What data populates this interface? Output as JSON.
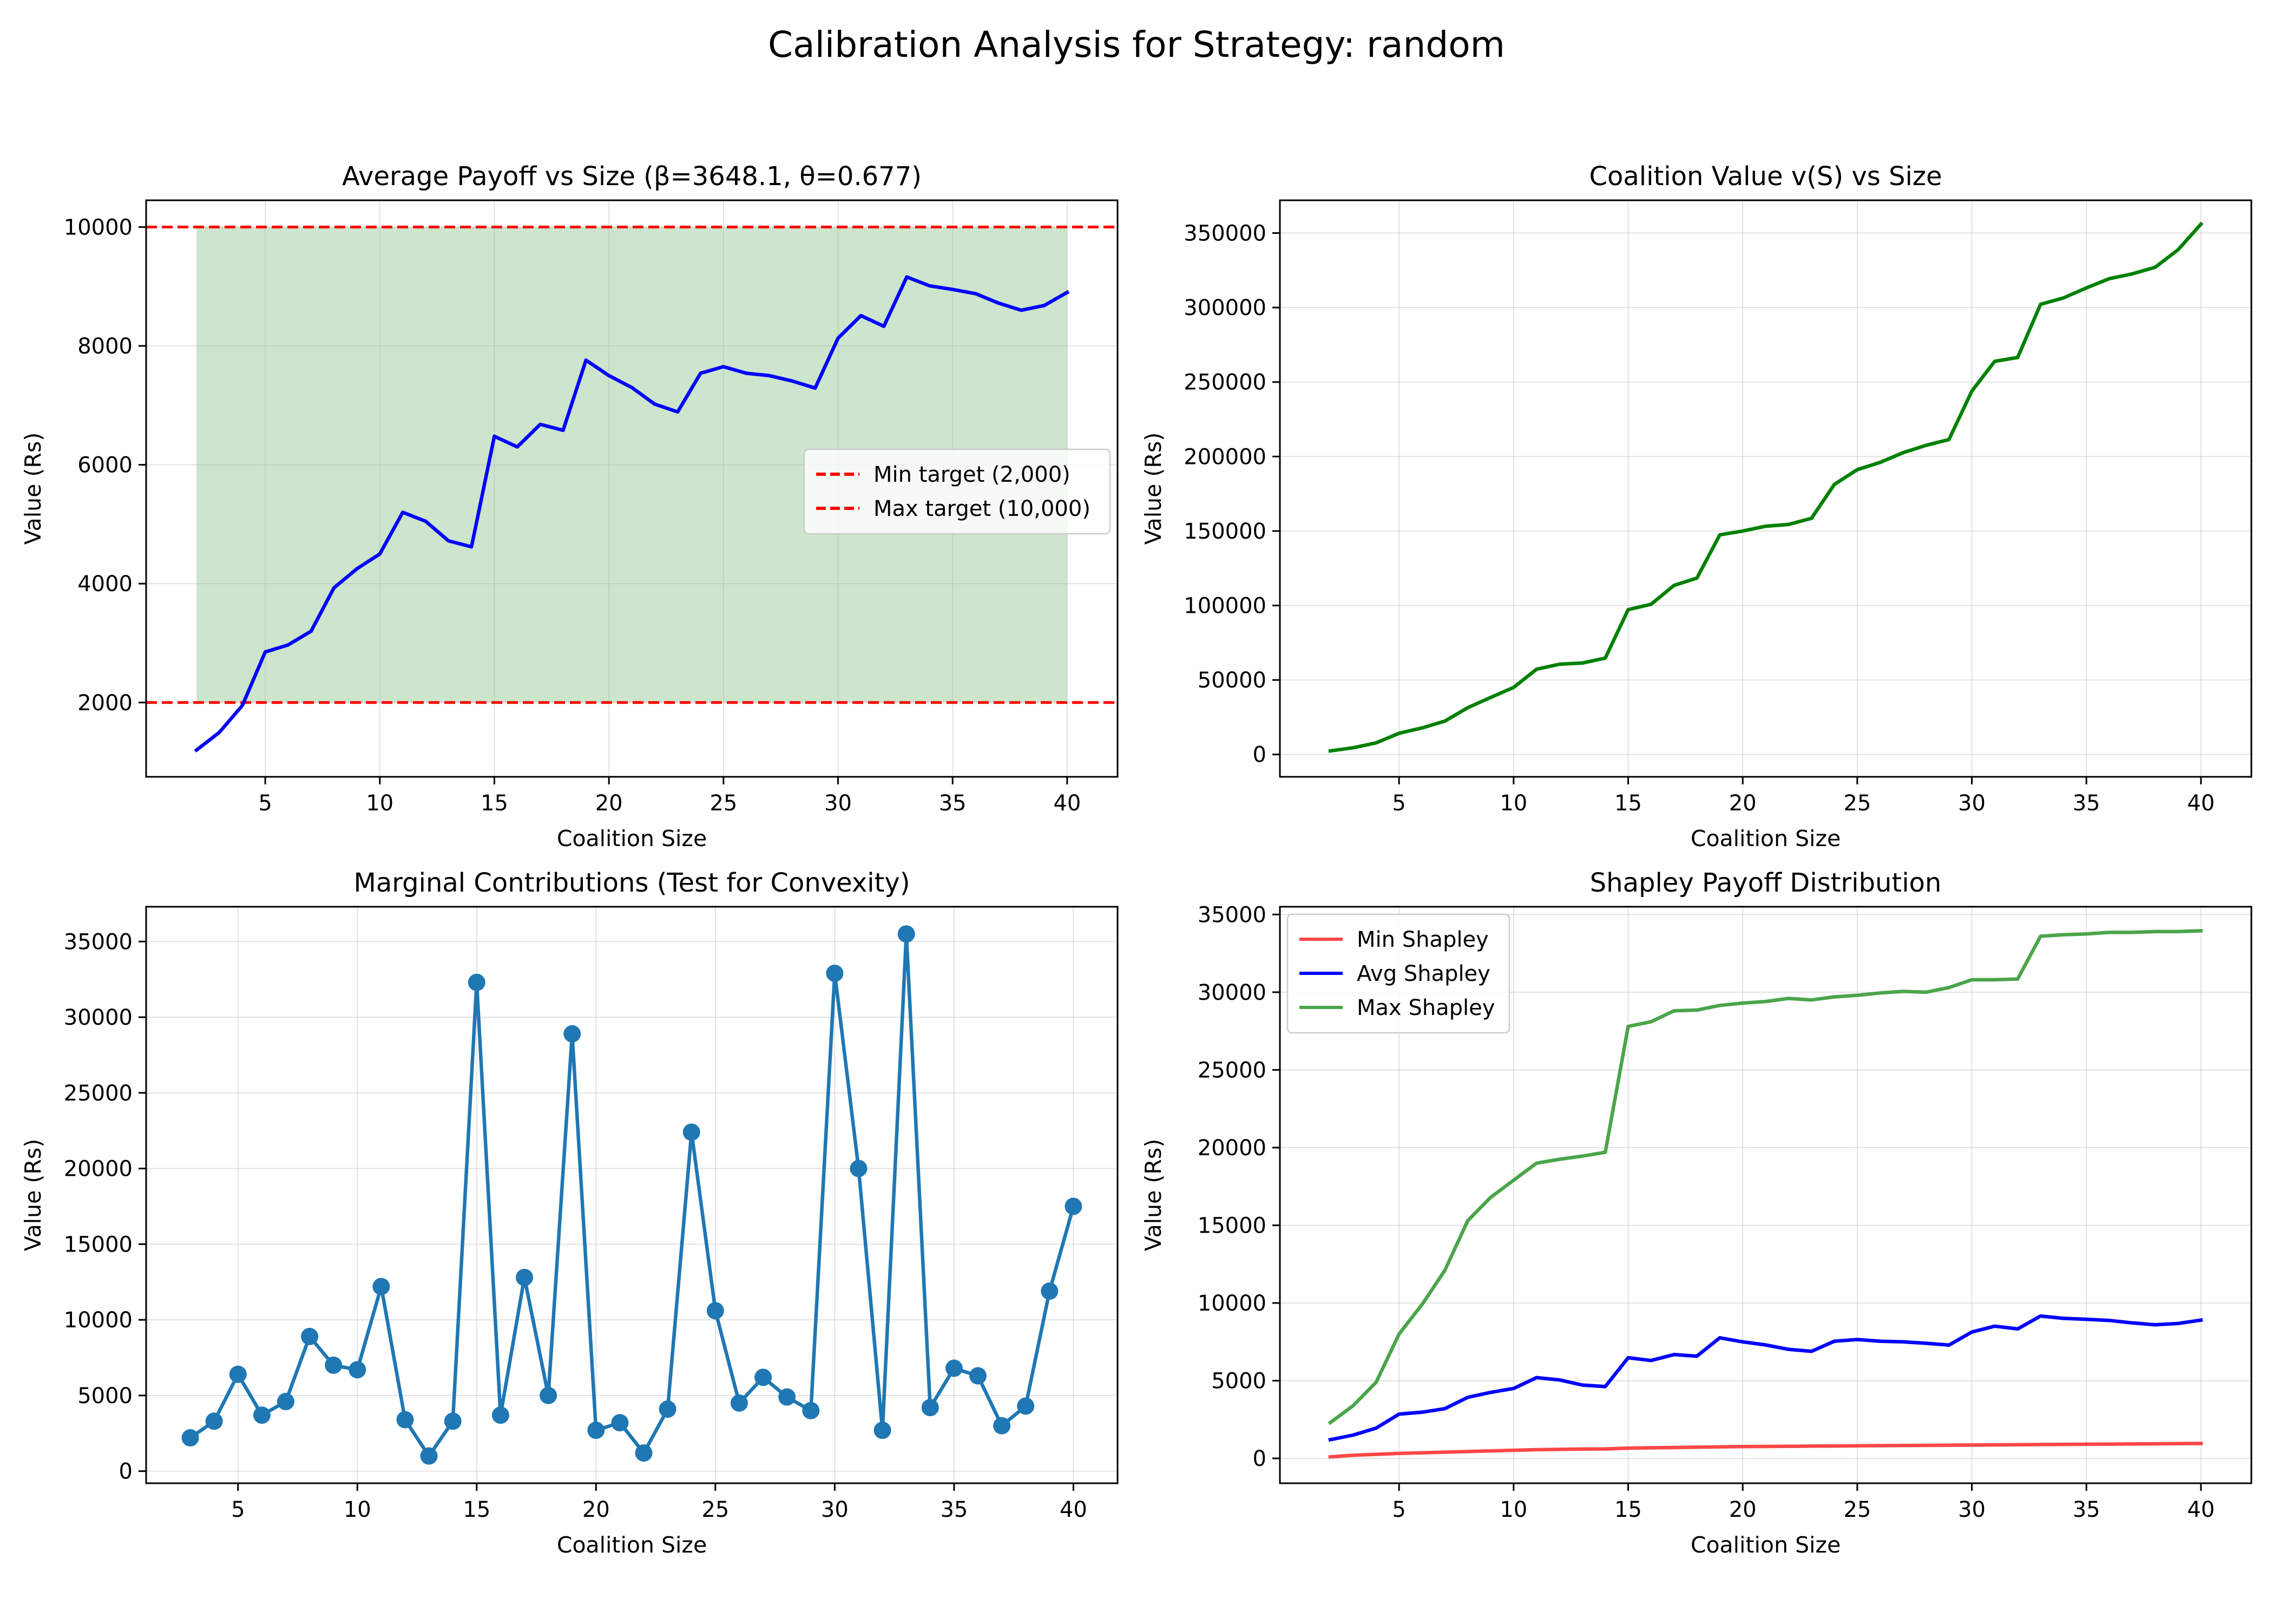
{
  "figure_title": "Calibration Analysis for Strategy: random",
  "chart_data": [
    {
      "type": "line",
      "title": "Average Payoff vs Size (β=3648.1, θ=0.677)",
      "xlabel": "Coalition Size",
      "ylabel": "Value (Rs)",
      "xlim": [
        -0.2,
        42.2
      ],
      "ylim": [
        750,
        10450
      ],
      "xticks": [
        5,
        10,
        15,
        20,
        25,
        30,
        35,
        40
      ],
      "yticks": [
        2000,
        4000,
        6000,
        8000,
        10000
      ],
      "grid": true,
      "legend": "center-right",
      "shaded_band": {
        "x": [
          2,
          40
        ],
        "y": [
          2000,
          10000
        ],
        "color": "#cce5cc"
      },
      "hlines": [
        {
          "name": "Min target (2,000)",
          "y": 2000,
          "color": "#ff0000",
          "dash": true
        },
        {
          "name": "Max target (10,000)",
          "y": 10000,
          "color": "#ff0000",
          "dash": true
        }
      ],
      "x": [
        2,
        3,
        4,
        5,
        6,
        7,
        8,
        9,
        10,
        11,
        12,
        13,
        14,
        15,
        16,
        17,
        18,
        19,
        20,
        21,
        22,
        23,
        24,
        25,
        26,
        27,
        28,
        29,
        30,
        31,
        32,
        33,
        34,
        35,
        36,
        37,
        38,
        39,
        40
      ],
      "series": [
        {
          "name": "",
          "color": "#0000ff",
          "markers": false,
          "values": [
            1200,
            1500,
            1950,
            2850,
            2970,
            3200,
            3930,
            4250,
            4500,
            5200,
            5050,
            4720,
            4620,
            6480,
            6300,
            6680,
            6580,
            7760,
            7500,
            7300,
            7020,
            6890,
            7540,
            7650,
            7540,
            7500,
            7410,
            7290,
            8130,
            8510,
            8330,
            9160,
            9010,
            8950,
            8880,
            8720,
            8600,
            8680,
            8900
          ]
        }
      ]
    },
    {
      "type": "line",
      "title": "Coalition Value v(S) vs Size",
      "xlabel": "Coalition Size",
      "ylabel": "Value (Rs)",
      "xlim": [
        -0.2,
        42.2
      ],
      "ylim": [
        -15000,
        372000
      ],
      "xticks": [
        5,
        10,
        15,
        20,
        25,
        30,
        35,
        40
      ],
      "yticks": [
        0,
        50000,
        100000,
        150000,
        200000,
        250000,
        300000,
        350000
      ],
      "grid": true,
      "x": [
        2,
        3,
        4,
        5,
        6,
        7,
        8,
        9,
        10,
        11,
        12,
        13,
        14,
        15,
        16,
        17,
        18,
        19,
        20,
        21,
        22,
        23,
        24,
        25,
        26,
        27,
        28,
        29,
        30,
        31,
        32,
        33,
        34,
        35,
        36,
        37,
        38,
        39,
        40
      ],
      "series": [
        {
          "name": "",
          "color": "#008000",
          "markers": false,
          "values": [
            2400,
            4500,
            7800,
            14200,
            17800,
            22400,
            31400,
            38300,
            45000,
            57200,
            60600,
            61400,
            64700,
            97200,
            100800,
            113500,
            118400,
            147400,
            150000,
            153200,
            154400,
            158500,
            181300,
            191200,
            196100,
            202600,
            207500,
            211400,
            243900,
            263900,
            266500,
            302200,
            306500,
            313200,
            319400,
            322600,
            327000,
            338800,
            356000
          ]
        }
      ]
    },
    {
      "type": "line",
      "title": "Marginal Contributions (Test for Convexity)",
      "xlabel": "Coalition Size",
      "ylabel": "Value (Rs)",
      "xlim": [
        1.15,
        41.85
      ],
      "ylim": [
        -800,
        37300
      ],
      "xticks": [
        5,
        10,
        15,
        20,
        25,
        30,
        35,
        40
      ],
      "yticks": [
        0,
        5000,
        10000,
        15000,
        20000,
        25000,
        30000,
        35000
      ],
      "grid": true,
      "x": [
        3,
        4,
        5,
        6,
        7,
        8,
        9,
        10,
        11,
        12,
        13,
        14,
        15,
        16,
        17,
        18,
        19,
        20,
        21,
        22,
        23,
        24,
        25,
        26,
        27,
        28,
        29,
        30,
        31,
        32,
        33,
        34,
        35,
        36,
        37,
        38,
        39,
        40
      ],
      "series": [
        {
          "name": "",
          "color": "#1f77b4",
          "markers": true,
          "values": [
            2200,
            3300,
            6400,
            3700,
            4600,
            8900,
            7000,
            6700,
            12200,
            3400,
            1000,
            3300,
            32300,
            3700,
            12800,
            5000,
            28900,
            2700,
            3200,
            1200,
            4100,
            22400,
            10600,
            4500,
            6200,
            4900,
            4000,
            32900,
            20000,
            2700,
            35500,
            4200,
            6800,
            6300,
            3000,
            4300,
            11900,
            17500
          ]
        }
      ]
    },
    {
      "type": "line",
      "title": "Shapley Payoff Distribution",
      "xlabel": "Coalition Size",
      "ylabel": "Value (Rs)",
      "xlim": [
        -0.2,
        42.2
      ],
      "ylim": [
        -1600,
        35500
      ],
      "xticks": [
        5,
        10,
        15,
        20,
        25,
        30,
        35,
        40
      ],
      "yticks": [
        0,
        5000,
        10000,
        15000,
        20000,
        25000,
        30000,
        35000
      ],
      "grid": true,
      "legend": "top-left",
      "x": [
        2,
        3,
        4,
        5,
        6,
        7,
        8,
        9,
        10,
        11,
        12,
        13,
        14,
        15,
        16,
        17,
        18,
        19,
        20,
        21,
        22,
        23,
        24,
        25,
        26,
        27,
        28,
        29,
        30,
        31,
        32,
        33,
        34,
        35,
        36,
        37,
        38,
        39,
        40
      ],
      "series": [
        {
          "name": "Min Shapley",
          "color": "#ff4747",
          "markers": false,
          "values": [
            100,
            200,
            260,
            320,
            360,
            400,
            440,
            480,
            520,
            560,
            580,
            600,
            610,
            660,
            680,
            700,
            720,
            740,
            760,
            770,
            780,
            790,
            800,
            810,
            820,
            830,
            840,
            850,
            860,
            870,
            880,
            890,
            900,
            910,
            920,
            930,
            940,
            950,
            960
          ]
        },
        {
          "name": "Avg Shapley",
          "color": "#0000ff",
          "markers": false,
          "values": [
            1200,
            1500,
            1950,
            2850,
            2970,
            3200,
            3930,
            4250,
            4500,
            5200,
            5050,
            4720,
            4620,
            6480,
            6300,
            6680,
            6580,
            7760,
            7500,
            7300,
            7020,
            6890,
            7540,
            7650,
            7540,
            7500,
            7410,
            7290,
            8130,
            8510,
            8330,
            9160,
            9010,
            8950,
            8880,
            8720,
            8600,
            8680,
            8900
          ]
        },
        {
          "name": "Max Shapley",
          "color": "#4aa54a",
          "markers": false,
          "values": [
            2300,
            3400,
            4900,
            8000,
            9900,
            12100,
            15300,
            16800,
            17900,
            19000,
            19250,
            19450,
            19700,
            27800,
            28100,
            28800,
            28850,
            29150,
            29300,
            29400,
            29600,
            29500,
            29700,
            29800,
            29950,
            30050,
            30000,
            30300,
            30800,
            30800,
            30850,
            33600,
            33700,
            33750,
            33850,
            33850,
            33900,
            33900,
            33950
          ]
        }
      ]
    }
  ]
}
